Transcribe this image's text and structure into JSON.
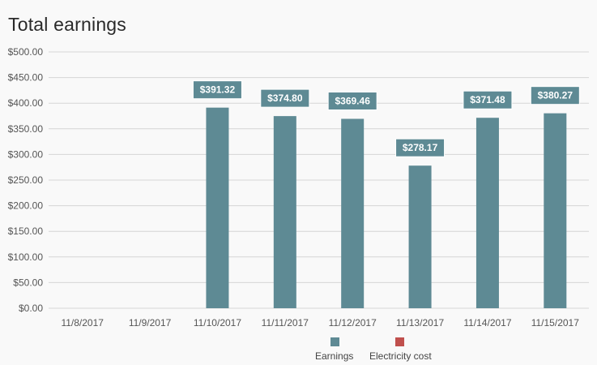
{
  "title": "Total earnings",
  "colors": {
    "earnings": "#5e8a94",
    "electricity": "#c0504d",
    "label_bg": "#5e8a94",
    "grid": "#d6d6d6"
  },
  "chart_data": {
    "type": "bar",
    "title": "Total earnings",
    "categories": [
      "11/8/2017",
      "11/9/2017",
      "11/10/2017",
      "11/11/2017",
      "11/12/2017",
      "11/13/2017",
      "11/14/2017",
      "11/15/2017"
    ],
    "series": [
      {
        "name": "Earnings",
        "values": [
          0,
          0,
          391.32,
          374.8,
          369.46,
          278.17,
          371.48,
          380.27
        ]
      },
      {
        "name": "Electricity cost",
        "values": [
          0,
          0,
          0,
          0,
          0,
          0,
          0,
          0
        ]
      }
    ],
    "data_labels": [
      "",
      "",
      "$391.32",
      "$374.80",
      "$369.46",
      "$278.17",
      "$371.48",
      "$380.27"
    ],
    "y_ticks": [
      "$0.00",
      "$50.00",
      "$100.00",
      "$150.00",
      "$200.00",
      "$250.00",
      "$300.00",
      "$350.00",
      "$400.00",
      "$450.00",
      "$500.00"
    ],
    "ylim": [
      0,
      500
    ],
    "grid": true,
    "legend_position": "bottom-center"
  },
  "legend": {
    "earnings": "Earnings",
    "electricity": "Electricity cost"
  }
}
